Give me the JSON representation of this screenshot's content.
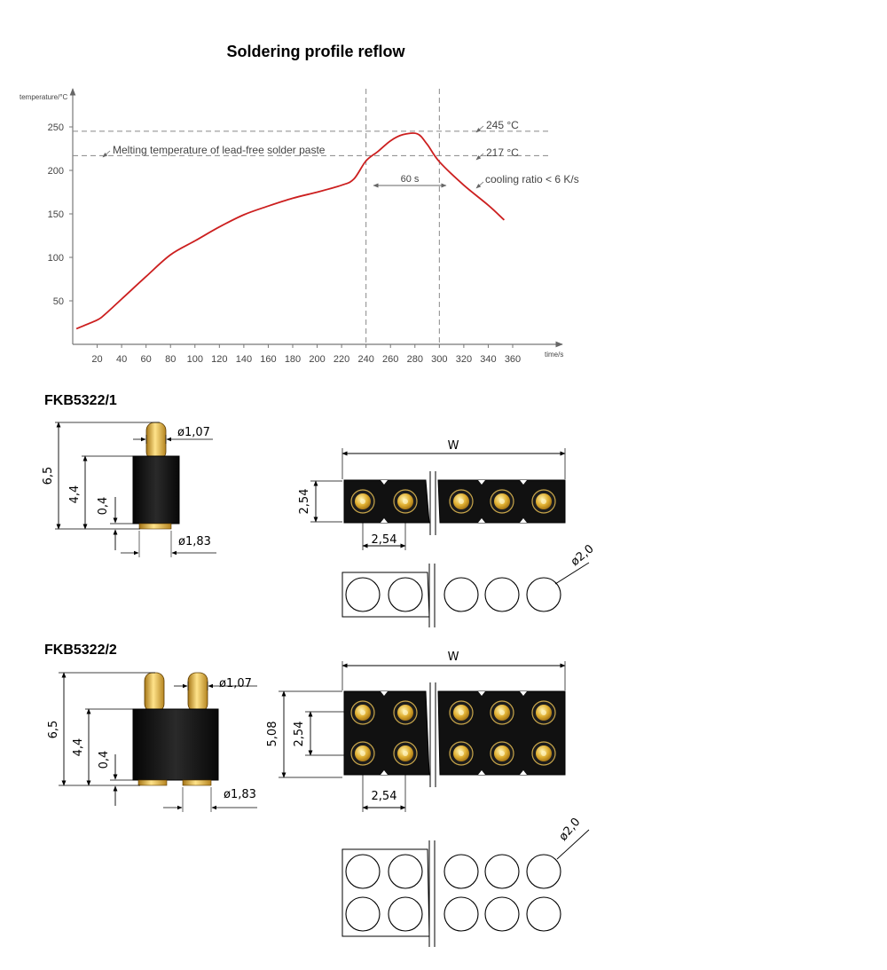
{
  "chart": {
    "title": "Soldering profile reflow",
    "ylabel": "temperature/°C",
    "xlabel": "time/s",
    "ann_melting": "Melting temperature of lead-free solder paste",
    "ann_245": "245 °C",
    "ann_217": "217 °C",
    "ann_60s": "60 s",
    "ann_cooling": "cooling ratio < 6 K/s",
    "line_color": "#cc1f1f"
  },
  "chart_data": {
    "type": "line",
    "title": "Soldering profile reflow",
    "xlabel": "time/s",
    "ylabel": "temperature/°C",
    "xlim": [
      0,
      380
    ],
    "ylim": [
      0,
      280
    ],
    "x_ticks": [
      "20",
      "40",
      "60",
      "80",
      "100",
      "120",
      "140",
      "160",
      "180",
      "200",
      "220",
      "240",
      "260",
      "280",
      "300",
      "320",
      "340",
      "360"
    ],
    "y_ticks": [
      "50",
      "100",
      "150",
      "200",
      "250"
    ],
    "series": [
      {
        "x": [
          3,
          20,
          26,
          40,
          60,
          80,
          100,
          120,
          140,
          160,
          180,
          200,
          220,
          230,
          240,
          250,
          260,
          270,
          282,
          290,
          300,
          320,
          340,
          353
        ],
        "y": [
          18,
          28,
          34,
          52,
          78,
          103,
          119,
          135,
          149,
          159,
          168,
          175,
          183,
          190,
          211,
          222,
          234,
          241,
          242,
          230,
          210,
          183,
          160,
          143
        ]
      }
    ],
    "reference_lines_y": [
      245,
      217
    ],
    "reference_lines_x": [
      240,
      300
    ],
    "grid": false
  },
  "parts": [
    {
      "title": "FKB5322/1",
      "dim_height_total": "6,5",
      "dim_height_body": "4,4",
      "dim_gap": "0,4",
      "dim_pin_dia": "ø1,07",
      "dim_bottom_dia": "ø1,83",
      "dim_width": "W",
      "dim_row_height": "2,54",
      "dim_pitch": "2,54",
      "dim_hole_dia": "ø2,0"
    },
    {
      "title": "FKB5322/2",
      "dim_height_total": "6,5",
      "dim_height_body": "4,4",
      "dim_gap": "0,4",
      "dim_pin_dia": "ø1,07",
      "dim_bottom_dia": "ø1,83",
      "dim_width": "W",
      "dim_total_height": "5,08",
      "dim_row_height": "2,54",
      "dim_pitch": "2,54",
      "dim_hole_dia": "ø2,0"
    }
  ]
}
